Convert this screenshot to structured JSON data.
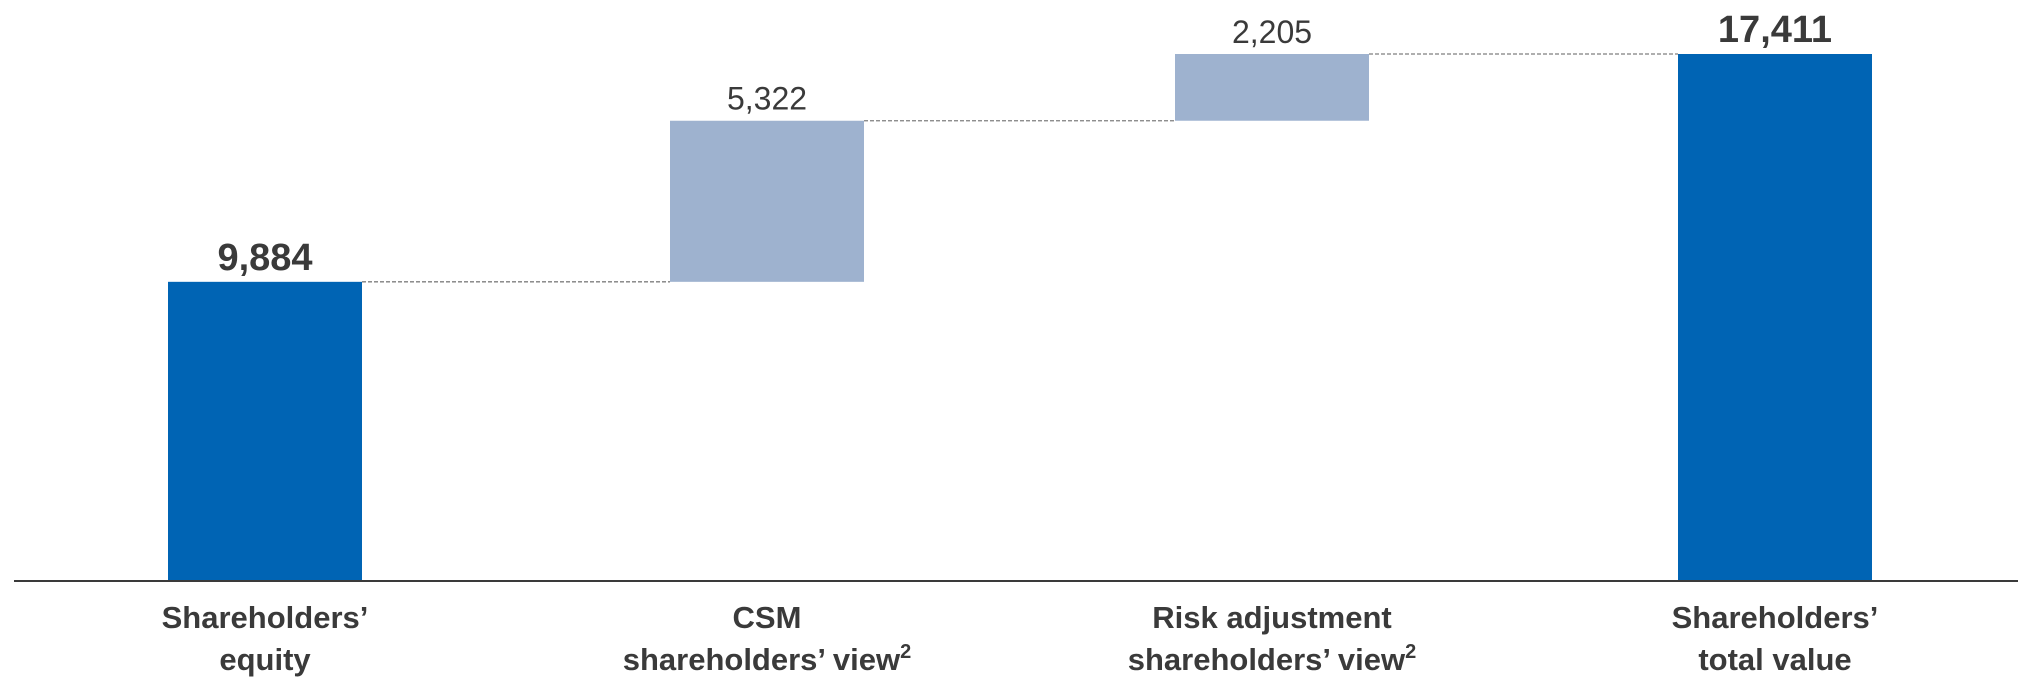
{
  "chart_data": {
    "type": "bar",
    "variant": "waterfall",
    "title": "",
    "xlabel": "",
    "ylabel": "",
    "ylim": [
      0,
      17411
    ],
    "grid": false,
    "legend": "none",
    "categories": [
      {
        "lines": [
          "Shareholders’",
          "equity"
        ],
        "superscript": ""
      },
      {
        "lines": [
          "CSM",
          "shareholders’ view"
        ],
        "superscript": "2"
      },
      {
        "lines": [
          "Risk adjustment",
          "shareholders’ view"
        ],
        "superscript": "2"
      },
      {
        "lines": [
          "Shareholders’",
          "total value"
        ],
        "superscript": ""
      }
    ],
    "bars": [
      {
        "kind": "total",
        "base": 0,
        "value": 9884,
        "label": "9,884"
      },
      {
        "kind": "delta",
        "base": 9884,
        "value": 5322,
        "label": "5,322"
      },
      {
        "kind": "delta",
        "base": 15206,
        "value": 2205,
        "label": "2,205"
      },
      {
        "kind": "total",
        "base": 0,
        "value": 17411,
        "label": "17,411"
      }
    ],
    "colors": {
      "total": "#0064b4",
      "delta": "#9eb2cf",
      "connector": "#7f7f7f",
      "axis": "#3a3a3a"
    }
  }
}
